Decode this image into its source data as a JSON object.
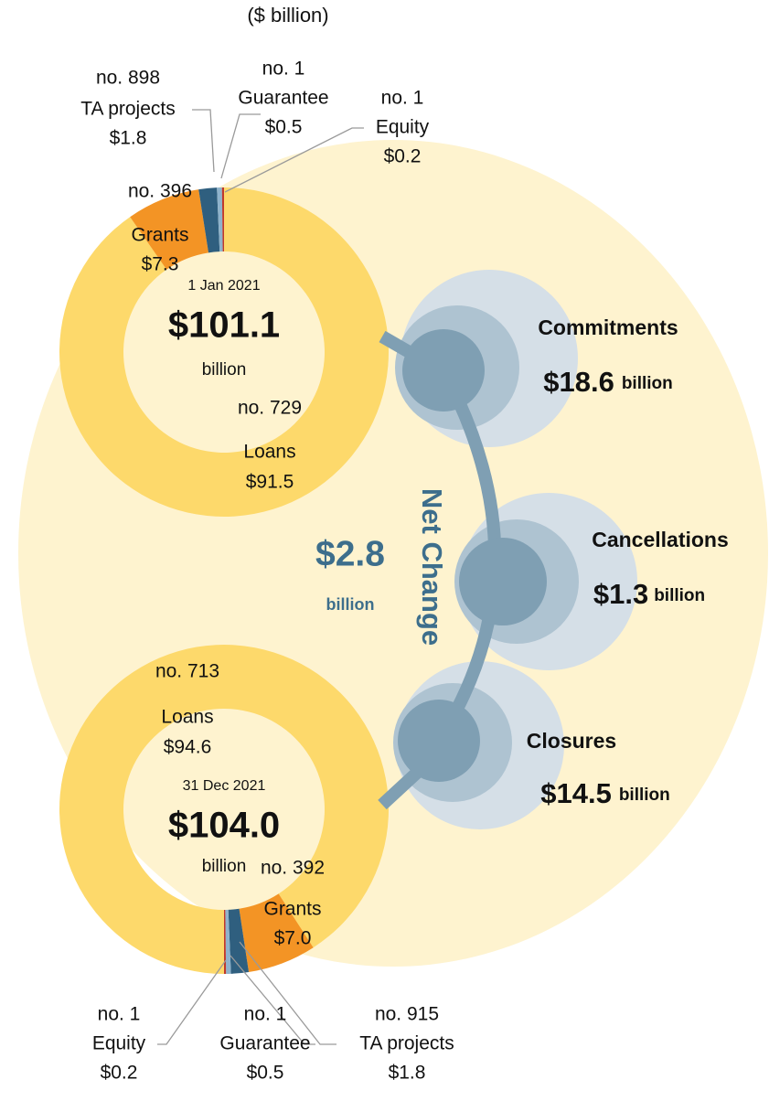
{
  "subtitle": "($ billion)",
  "chart_data": [
    {
      "type": "donut",
      "date": "1 Jan 2021",
      "total": 101.1,
      "total_label": "$101.1",
      "unit_label": "billion",
      "start_angle": 0,
      "direction": "counterclockwise",
      "categories": [
        "Equity",
        "Guarantee",
        "TA projects",
        "Grants",
        "Loans"
      ],
      "counts": [
        1,
        1,
        898,
        396,
        729
      ],
      "count_labels": [
        "no. 1",
        "no. 1",
        "no. 898",
        "no. 396",
        "no. 729"
      ],
      "values": [
        0.2,
        0.5,
        1.8,
        7.3,
        91.5
      ],
      "value_labels": [
        "$0.2",
        "$0.5",
        "$1.8",
        "$7.3",
        "$91.5"
      ],
      "colors": [
        "#c0392b",
        "#8fb3cc",
        "#2f5f7f",
        "#f39425",
        "#fdd96b"
      ]
    },
    {
      "type": "donut",
      "date": "31 Dec 2021",
      "total": 104.0,
      "total_label": "$104.0",
      "unit_label": "billion",
      "start_angle": 180,
      "direction": "counterclockwise",
      "categories": [
        "Equity",
        "Guarantee",
        "TA projects",
        "Grants",
        "Loans"
      ],
      "counts": [
        1,
        1,
        915,
        392,
        713
      ],
      "count_labels": [
        "no. 1",
        "no. 1",
        "no. 915",
        "no. 392",
        "no. 713"
      ],
      "values": [
        0.2,
        0.5,
        1.8,
        7.0,
        94.6
      ],
      "value_labels": [
        "$0.2",
        "$0.5",
        "$1.8",
        "$7.0",
        "$94.6"
      ],
      "colors": [
        "#c0392b",
        "#8fb3cc",
        "#2f5f7f",
        "#f39425",
        "#fdd96b"
      ]
    }
  ],
  "flows": [
    {
      "name": "Commitments",
      "value": 18.6,
      "value_label": "$18.6",
      "unit_label": "billion"
    },
    {
      "name": "Cancellations",
      "value": 1.3,
      "value_label": "$1.3",
      "unit_label": "billion"
    },
    {
      "name": "Closures",
      "value": 14.5,
      "value_label": "$14.5",
      "unit_label": "billion"
    }
  ],
  "net_change": {
    "title": "Net Change",
    "value": 2.8,
    "value_label": "$2.8",
    "unit_label": "billion"
  }
}
